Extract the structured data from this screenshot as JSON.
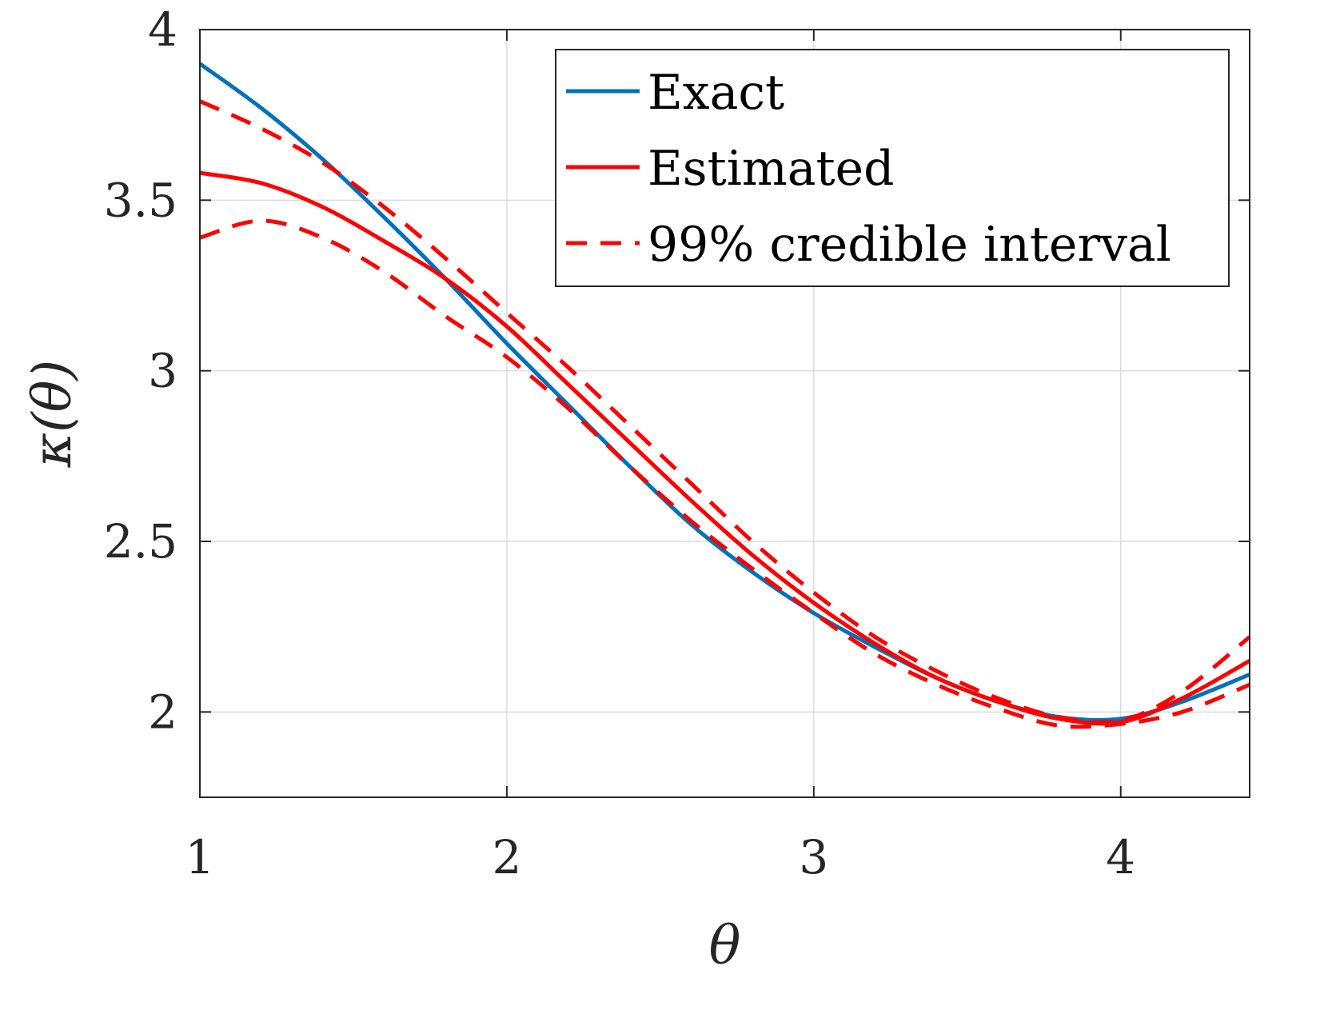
{
  "chart_data": {
    "type": "line",
    "xlabel": "θ",
    "ylabel": "κ(θ)",
    "xlim": [
      1,
      4.42
    ],
    "ylim": [
      1.75,
      4.0
    ],
    "xticks": [
      1,
      2,
      3,
      4
    ],
    "yticks": [
      2,
      2.5,
      3,
      3.5,
      4
    ],
    "xtick_labels": [
      "1",
      "2",
      "3",
      "4"
    ],
    "ytick_labels": [
      "2",
      "2.5",
      "3",
      "3.5",
      "4"
    ],
    "grid": true,
    "legend_position": "top-right",
    "colors": {
      "exact": "#0072BD",
      "estimated": "#FF0000",
      "interval": "#FF0000"
    },
    "series": [
      {
        "name": "Exact",
        "style": "solid",
        "color": "#0072BD",
        "x": [
          1.0,
          1.2,
          1.4,
          1.6,
          1.8,
          2.0,
          2.2,
          2.4,
          2.6,
          2.8,
          3.0,
          3.2,
          3.4,
          3.6,
          3.8,
          4.0,
          4.2,
          4.42
        ],
        "y": [
          3.9,
          3.77,
          3.62,
          3.45,
          3.27,
          3.08,
          2.9,
          2.72,
          2.55,
          2.41,
          2.29,
          2.19,
          2.1,
          2.03,
          1.985,
          1.98,
          2.03,
          2.11
        ]
      },
      {
        "name": "Estimated",
        "style": "solid",
        "color": "#FF0000",
        "x": [
          1.0,
          1.2,
          1.4,
          1.6,
          1.8,
          2.0,
          2.2,
          2.4,
          2.6,
          2.8,
          3.0,
          3.2,
          3.4,
          3.6,
          3.8,
          4.0,
          4.2,
          4.42
        ],
        "y": [
          3.58,
          3.55,
          3.48,
          3.38,
          3.27,
          3.13,
          2.96,
          2.79,
          2.62,
          2.46,
          2.32,
          2.2,
          2.1,
          2.03,
          1.98,
          1.97,
          2.04,
          2.15
        ]
      },
      {
        "name": "99% credible interval",
        "style": "dashed",
        "color": "#FF0000",
        "x": [
          1.0,
          1.2,
          1.4,
          1.6,
          1.8,
          2.0,
          2.2,
          2.4,
          2.6,
          2.8,
          3.0,
          3.2,
          3.4,
          3.6,
          3.8,
          4.0,
          4.2,
          4.42
        ],
        "y": [
          3.79,
          3.71,
          3.61,
          3.48,
          3.33,
          3.17,
          3.01,
          2.84,
          2.67,
          2.5,
          2.35,
          2.22,
          2.12,
          2.04,
          1.985,
          1.975,
          2.06,
          2.22
        ]
      },
      {
        "name": "",
        "style": "dashed",
        "color": "#FF0000",
        "x": [
          1.0,
          1.2,
          1.4,
          1.6,
          1.8,
          2.0,
          2.2,
          2.4,
          2.6,
          2.8,
          3.0,
          3.2,
          3.4,
          3.6,
          3.8,
          4.0,
          4.2,
          4.42
        ],
        "y": [
          3.39,
          3.44,
          3.39,
          3.29,
          3.16,
          3.04,
          2.89,
          2.72,
          2.56,
          2.42,
          2.29,
          2.17,
          2.08,
          2.01,
          1.96,
          1.965,
          2.0,
          2.08
        ]
      }
    ]
  }
}
